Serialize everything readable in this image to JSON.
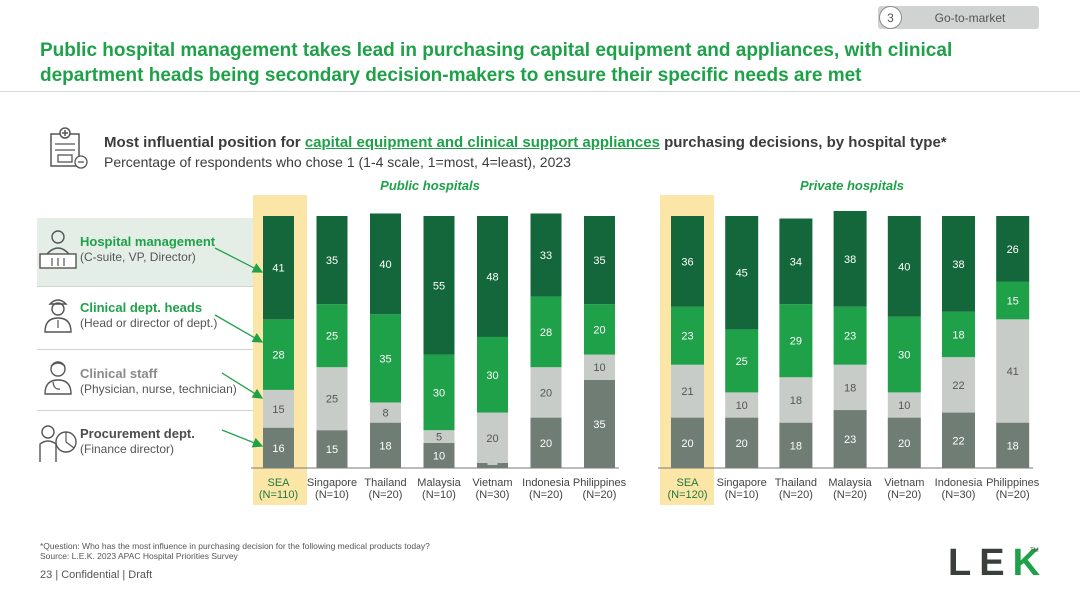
{
  "header": {
    "section_number": "3",
    "section_label": "Go-to-market",
    "title": "Public hospital management takes lead in purchasing capital equipment and appliances, with clinical department heads being secondary decision-makers to ensure their specific needs are met"
  },
  "subtitle": {
    "prefix": "Most influential position for ",
    "highlight": "capital equipment and clinical support appliances",
    "suffix": " purchasing decisions, by hospital type*",
    "line2": "Percentage of respondents who chose 1 (1-4 scale, 1=most, 4=least), 2023"
  },
  "legend": [
    {
      "title": "Hospital management",
      "sub": "(C-suite, VP, Director)"
    },
    {
      "title": "Clinical dept. heads",
      "sub": "(Head or director of dept.)"
    },
    {
      "title": "Clinical staff",
      "sub": "(Physician, nurse, technician)"
    },
    {
      "title": "Procurement dept.",
      "sub": "(Finance director)"
    }
  ],
  "colors": {
    "management": "#13673a",
    "clinical_heads": "#1ea148",
    "clinical_staff": "#c7ccc9",
    "procurement": "#6f7d74",
    "highlight": "#fbe6a8"
  },
  "chart_data": [
    {
      "type": "bar",
      "stacked": true,
      "title": "Public hospitals",
      "categories": [
        "SEA",
        "Singapore",
        "Thailand",
        "Malaysia",
        "Vietnam",
        "Indonesia",
        "Philippines"
      ],
      "sample_sizes": [
        "(N=110)",
        "(N=10)",
        "(N=20)",
        "(N=10)",
        "(N=30)",
        "(N=20)",
        "(N=20)"
      ],
      "series": [
        {
          "name": "Procurement dept.",
          "values": [
            16,
            15,
            18,
            10,
            2,
            20,
            35
          ]
        },
        {
          "name": "Clinical staff",
          "values": [
            15,
            25,
            8,
            5,
            20,
            20,
            10
          ]
        },
        {
          "name": "Clinical dept. heads",
          "values": [
            28,
            25,
            35,
            30,
            30,
            28,
            20
          ]
        },
        {
          "name": "Hospital management",
          "values": [
            41,
            35,
            40,
            55,
            48,
            33,
            35
          ]
        }
      ],
      "ylim": [
        0,
        100
      ],
      "highlight_category": "SEA"
    },
    {
      "type": "bar",
      "stacked": true,
      "title": "Private hospitals",
      "categories": [
        "SEA",
        "Singapore",
        "Thailand",
        "Malaysia",
        "Vietnam",
        "Indonesia",
        "Philippines"
      ],
      "sample_sizes": [
        "(N=120)",
        "(N=10)",
        "(N=20)",
        "(N=20)",
        "(N=20)",
        "(N=30)",
        "(N=20)"
      ],
      "series": [
        {
          "name": "Procurement dept.",
          "values": [
            20,
            20,
            18,
            23,
            20,
            22,
            18
          ]
        },
        {
          "name": "Clinical staff",
          "values": [
            21,
            10,
            18,
            18,
            10,
            22,
            41
          ]
        },
        {
          "name": "Clinical dept. heads",
          "values": [
            23,
            25,
            29,
            23,
            30,
            18,
            15
          ]
        },
        {
          "name": "Hospital management",
          "values": [
            36,
            45,
            34,
            38,
            40,
            38,
            26
          ]
        }
      ],
      "ylim": [
        0,
        100
      ],
      "highlight_category": "SEA"
    }
  ],
  "footer": {
    "question": "*Question: Who has the most influence in purchasing decision for the following medical products today?",
    "source": "Source: L.E.K. 2023 APAC Hospital Priorities Survey",
    "page_number": "23",
    "page_label": "| Confidential | Draft",
    "logo_l": "L",
    "logo_e": "E",
    "logo_k": "K",
    "logo_tm": "TM"
  }
}
